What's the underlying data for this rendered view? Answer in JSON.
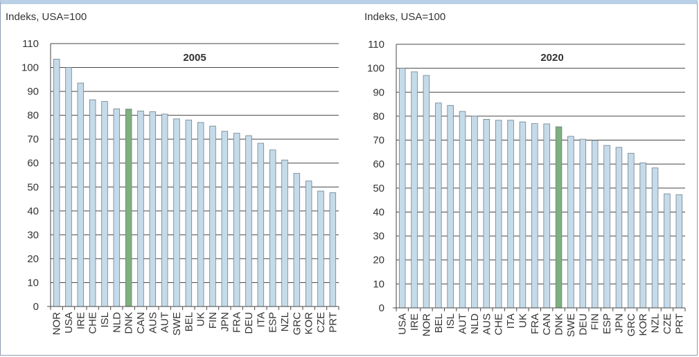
{
  "colors": {
    "bar": "#c6dbe9",
    "highlight": "#7fb07f",
    "bar_stroke": "#6f7f8c",
    "grid": "#444444"
  },
  "chart_data": [
    {
      "type": "bar",
      "title": "2005",
      "ylabel": "Indeks, USA=100",
      "ylim": [
        0,
        110
      ],
      "yticks": [
        0,
        10,
        20,
        30,
        40,
        50,
        60,
        70,
        80,
        90,
        100,
        110
      ],
      "grid": true,
      "highlight": "DNK",
      "categories": [
        "NOR",
        "USA",
        "IRE",
        "CHE",
        "ISL",
        "NLD",
        "DNK",
        "CAN",
        "AUS",
        "AUT",
        "SWE",
        "BEL",
        "UK",
        "FIN",
        "JPN",
        "FRA",
        "DEU",
        "ITA",
        "ESP",
        "NZL",
        "GRC",
        "KOR",
        "CZE",
        "PRT"
      ],
      "values": [
        103.5,
        100,
        93.5,
        86.5,
        85.8,
        82.7,
        82.6,
        81.8,
        81.5,
        80.5,
        78.5,
        78,
        77,
        75.5,
        73.3,
        72.5,
        71.5,
        68.3,
        65.5,
        61.3,
        55.7,
        52.5,
        48.3,
        47.6
      ]
    },
    {
      "type": "bar",
      "title": "2020",
      "ylabel": "Indeks, USA=100",
      "ylim": [
        0,
        110
      ],
      "yticks": [
        0,
        10,
        20,
        30,
        40,
        50,
        60,
        70,
        80,
        90,
        100,
        110
      ],
      "grid": true,
      "highlight": "DNK",
      "categories": [
        "USA",
        "IRE",
        "NOR",
        "BEL",
        "ISL",
        "AUT",
        "NLD",
        "AUS",
        "CHE",
        "ITA",
        "UK",
        "FRA",
        "CAN",
        "DNK",
        "SWE",
        "DEU",
        "FIN",
        "ESP",
        "JPN",
        "GRC",
        "KOR",
        "NZL",
        "CZE",
        "PRT"
      ],
      "values": [
        100,
        98.5,
        97,
        85.5,
        84.5,
        82,
        80,
        78.7,
        78.3,
        78.3,
        77.6,
        76.9,
        76.8,
        75.6,
        71.6,
        70.4,
        69.9,
        67.8,
        67,
        64.5,
        60.5,
        58.4,
        47.6,
        47.2
      ]
    }
  ]
}
